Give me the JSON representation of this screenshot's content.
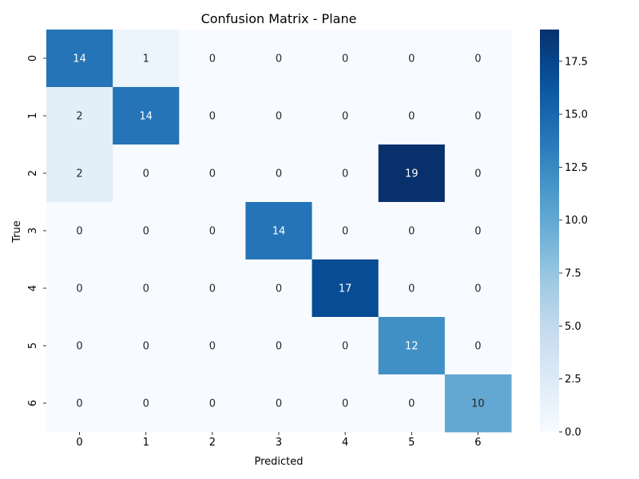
{
  "chart_data": {
    "type": "heatmap",
    "title": "Confusion Matrix - Plane",
    "xlabel": "Predicted",
    "ylabel": "True",
    "x_categories": [
      "0",
      "1",
      "2",
      "3",
      "4",
      "5",
      "6"
    ],
    "y_categories": [
      "0",
      "1",
      "2",
      "3",
      "4",
      "5",
      "6"
    ],
    "matrix": [
      [
        14,
        1,
        0,
        0,
        0,
        0,
        0
      ],
      [
        2,
        14,
        0,
        0,
        0,
        0,
        0
      ],
      [
        2,
        0,
        0,
        0,
        0,
        19,
        0
      ],
      [
        0,
        0,
        0,
        14,
        0,
        0,
        0
      ],
      [
        0,
        0,
        0,
        0,
        17,
        0,
        0
      ],
      [
        0,
        0,
        0,
        0,
        0,
        12,
        0
      ],
      [
        0,
        0,
        0,
        0,
        0,
        0,
        10
      ]
    ],
    "colorbar": {
      "min": 0,
      "max": 19,
      "ticks": [
        0.0,
        2.5,
        5.0,
        7.5,
        10.0,
        12.5,
        15.0,
        17.5
      ],
      "tick_labels": [
        "0.0",
        "2.5",
        "5.0",
        "7.5",
        "10.0",
        "12.5",
        "15.0",
        "17.5"
      ],
      "colormap": "Blues"
    },
    "annotations": true,
    "grid": false
  }
}
